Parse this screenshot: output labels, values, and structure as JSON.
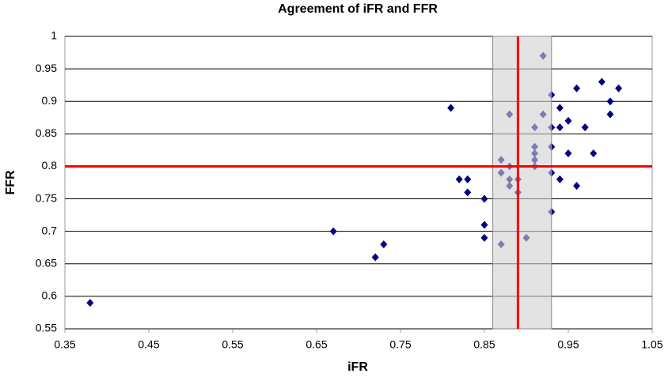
{
  "chart_data": {
    "type": "scatter",
    "title": "Agreement of iFR and FFR",
    "x_label": "iFR",
    "y_label": "FFR",
    "series": [
      {
        "color": "#000080",
        "x": [
          0.38,
          0.67,
          0.72,
          0.73,
          0.81,
          0.82,
          0.83,
          0.83,
          0.85,
          0.85,
          0.85,
          0.87,
          0.87,
          0.87,
          0.88,
          0.88,
          0.88,
          0.88,
          0.89,
          0.89,
          0.9,
          0.91,
          0.91,
          0.91,
          0.91,
          0.91,
          0.92,
          0.92,
          0.93,
          0.93,
          0.93,
          0.93,
          0.93,
          0.94,
          0.94,
          0.94,
          0.95,
          0.95,
          0.96,
          0.96,
          0.97,
          0.98,
          0.99,
          1.0,
          1.0,
          1.01
        ],
        "values": [
          0.59,
          0.7,
          0.66,
          0.68,
          0.89,
          0.78,
          0.78,
          0.76,
          0.75,
          0.71,
          0.69,
          0.81,
          0.79,
          0.68,
          0.88,
          0.8,
          0.78,
          0.77,
          0.78,
          0.76,
          0.69,
          0.86,
          0.83,
          0.82,
          0.81,
          0.8,
          0.88,
          0.97,
          0.91,
          0.86,
          0.83,
          0.79,
          0.73,
          0.89,
          0.86,
          0.78,
          0.87,
          0.82,
          0.92,
          0.77,
          0.86,
          0.82,
          0.93,
          0.9,
          0.88,
          0.92
        ]
      }
    ],
    "shaded_x_range": [
      0.86,
      0.93
    ],
    "shade_color": "#d0d0d0",
    "reference_lines": {
      "x": 0.89,
      "y": 0.8,
      "color": "#ff0000"
    },
    "xlim": [
      0.35,
      1.05
    ],
    "xticks": [
      0.35,
      0.45,
      0.55,
      0.65,
      0.75,
      0.85,
      0.95,
      1.05
    ],
    "ylim": [
      0.55,
      1
    ],
    "yticks": [
      0.55,
      0.6,
      0.65,
      0.7,
      0.75,
      0.8,
      0.85,
      0.9,
      0.95,
      1
    ],
    "grid": true
  }
}
